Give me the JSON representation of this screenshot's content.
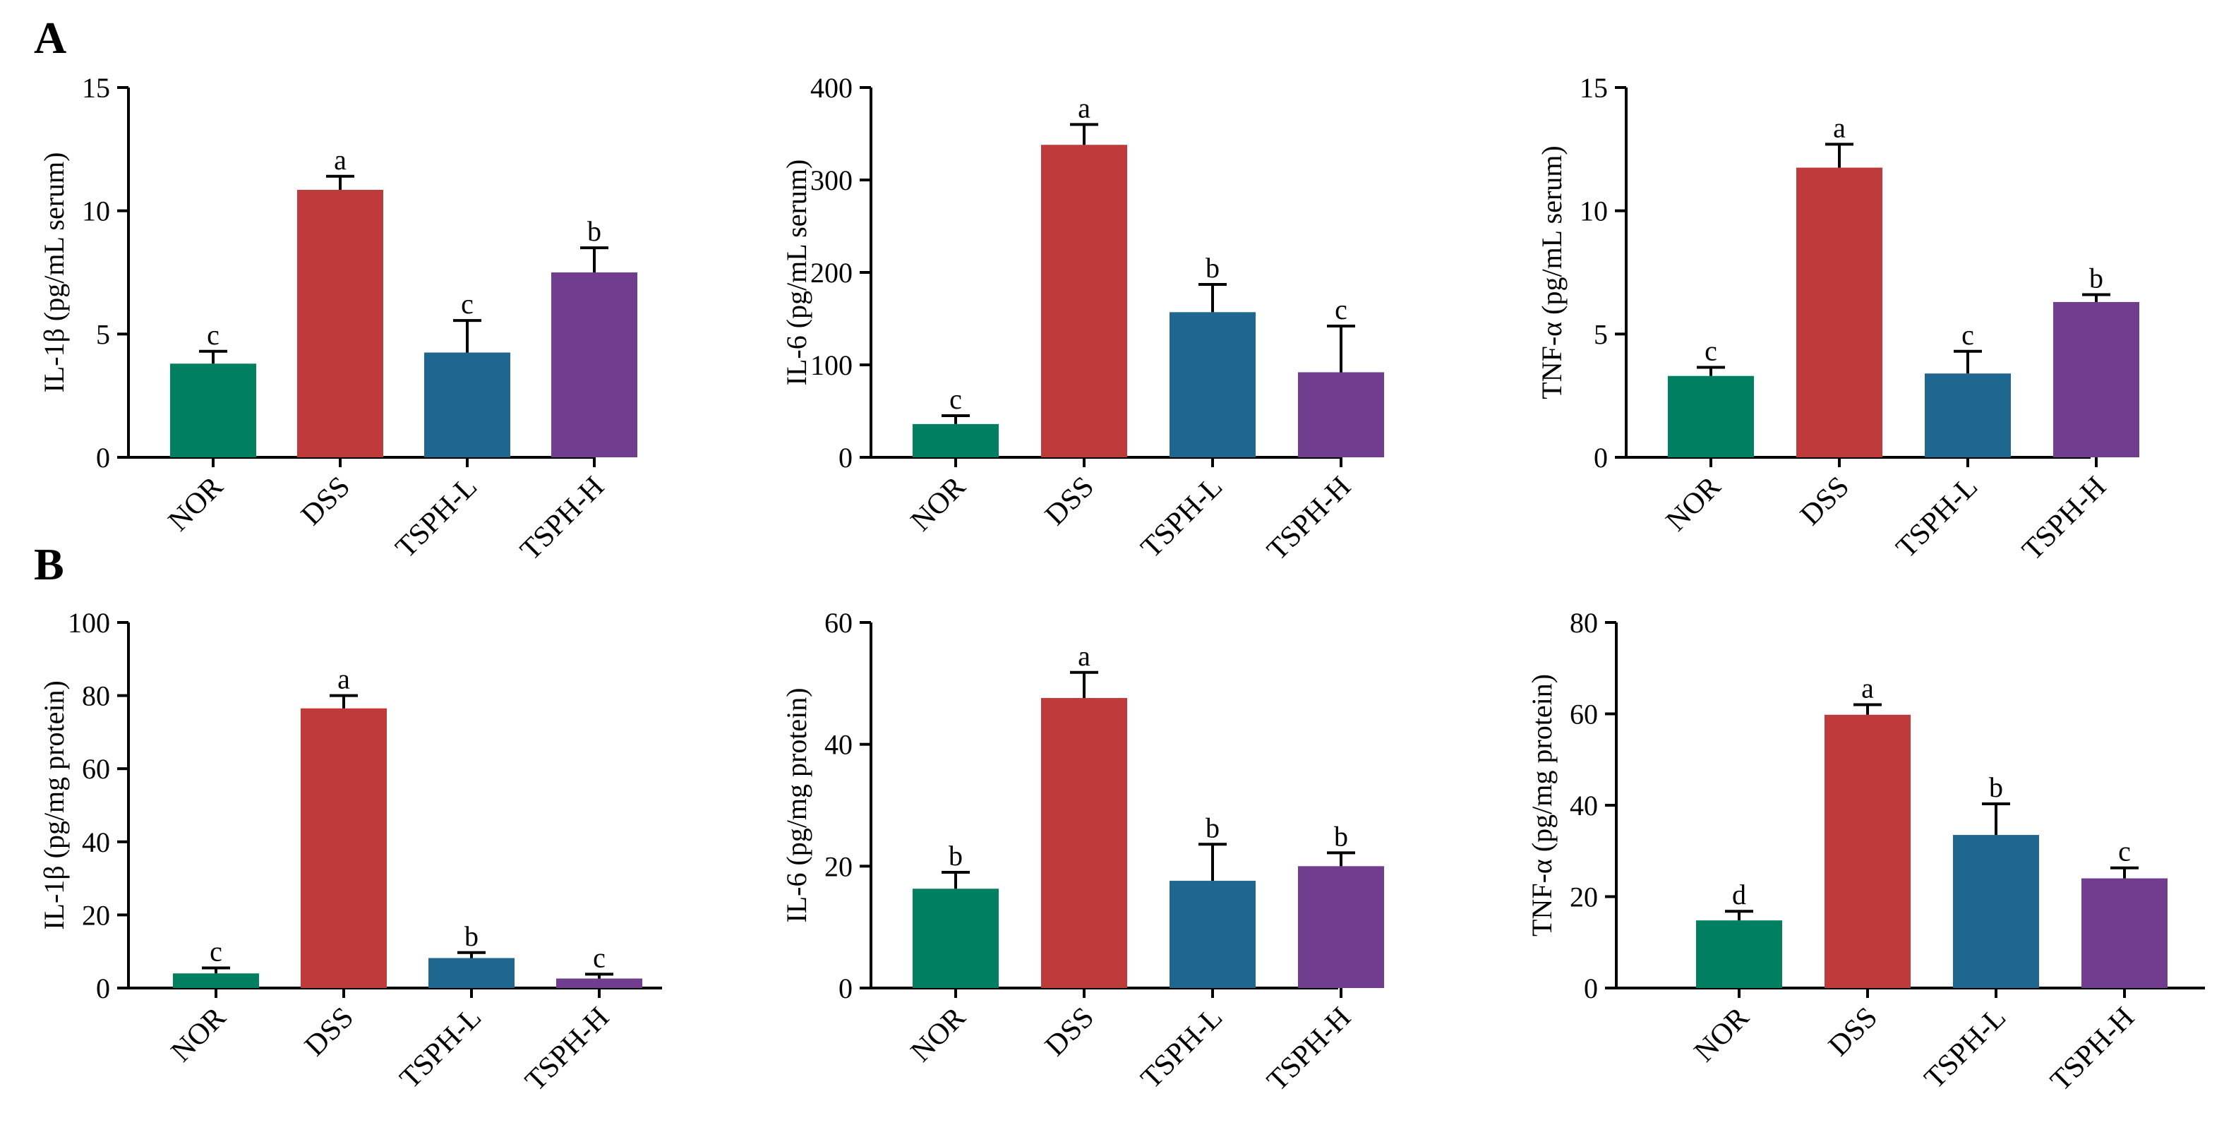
{
  "panels": [
    {
      "label": "A"
    },
    {
      "label": "B"
    }
  ],
  "colors": {
    "NOR": "#008060",
    "DSS": "#BF3B3B",
    "TSPH-L": "#1F6690",
    "TSPH-H": "#703D8F",
    "axis": "#000000"
  },
  "chart_data": [
    {
      "type": "bar",
      "panel": "A",
      "categories": [
        "NOR",
        "DSS",
        "TSPH-L",
        "TSPH-H"
      ],
      "values": [
        3.8,
        10.85,
        4.25,
        7.5
      ],
      "errors": [
        0.5,
        0.55,
        1.3,
        1.0
      ],
      "letters": [
        "c",
        "a",
        "c",
        "b"
      ],
      "ylabel": "IL-1β (pg/mL serum)",
      "ylim": [
        0,
        15
      ],
      "yticks": [
        0,
        5,
        10,
        15
      ]
    },
    {
      "type": "bar",
      "panel": "A",
      "categories": [
        "NOR",
        "DSS",
        "TSPH-L",
        "TSPH-H"
      ],
      "values": [
        36,
        338,
        157,
        92
      ],
      "errors": [
        9,
        22,
        30,
        50
      ],
      "letters": [
        "c",
        "a",
        "b",
        "c"
      ],
      "ylabel": "IL-6 (pg/mL serum)",
      "ylim": [
        0,
        400
      ],
      "yticks": [
        0,
        100,
        200,
        300,
        400
      ]
    },
    {
      "type": "bar",
      "panel": "A",
      "categories": [
        "NOR",
        "DSS",
        "TSPH-L",
        "TSPH-H"
      ],
      "values": [
        3.3,
        11.75,
        3.4,
        6.3
      ],
      "errors": [
        0.35,
        0.95,
        0.9,
        0.3
      ],
      "letters": [
        "c",
        "a",
        "c",
        "b"
      ],
      "ylabel": "TNF-α (pg/mL serum)",
      "ylim": [
        0,
        15
      ],
      "yticks": [
        0,
        5,
        10,
        15
      ]
    },
    {
      "type": "bar",
      "panel": "B",
      "categories": [
        "NOR",
        "DSS",
        "TSPH-L",
        "TSPH-H"
      ],
      "values": [
        4,
        76.5,
        8.2,
        2.6
      ],
      "errors": [
        1.5,
        3.5,
        1.5,
        1.2
      ],
      "letters": [
        "c",
        "a",
        "b",
        "c"
      ],
      "ylabel": "IL-1β (pg/mg protein)",
      "ylim": [
        0,
        100
      ],
      "yticks": [
        0,
        20,
        40,
        60,
        80,
        100
      ]
    },
    {
      "type": "bar",
      "panel": "B",
      "categories": [
        "NOR",
        "DSS",
        "TSPH-L",
        "TSPH-H"
      ],
      "values": [
        16.3,
        47.6,
        17.6,
        20
      ],
      "errors": [
        2.7,
        4.2,
        6.0,
        2.2
      ],
      "letters": [
        "b",
        "a",
        "b",
        "b"
      ],
      "ylabel": "IL-6 (pg/mg protein)",
      "ylim": [
        0,
        60
      ],
      "yticks": [
        0,
        20,
        40,
        60
      ]
    },
    {
      "type": "bar",
      "panel": "B",
      "categories": [
        "NOR",
        "DSS",
        "TSPH-L",
        "TSPH-H"
      ],
      "values": [
        14.8,
        59.8,
        33.5,
        24
      ],
      "errors": [
        2.0,
        2.2,
        6.8,
        2.3
      ],
      "letters": [
        "d",
        "a",
        "b",
        "c"
      ],
      "ylabel": "TNF-α (pg/mg protein)",
      "ylim": [
        0,
        80
      ],
      "yticks": [
        0,
        20,
        40,
        60,
        80
      ]
    }
  ]
}
